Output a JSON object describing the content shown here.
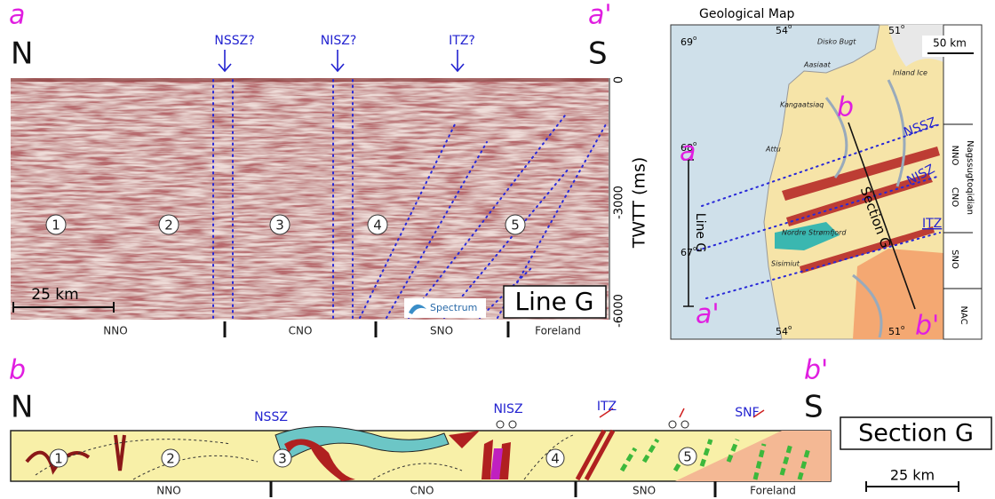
{
  "seismic": {
    "label_start": "a",
    "label_end": "a'",
    "north": "N",
    "south": "S",
    "zones": [
      "NSSZ?",
      "NISZ?",
      "ITZ?"
    ],
    "domain_numbers": [
      "1",
      "2",
      "3",
      "4",
      "5"
    ],
    "axis_title": "TWTT (ms)",
    "axis_ticks": [
      "0",
      "-3000",
      "-6000"
    ],
    "scale": "25 km",
    "line_name": "Line G",
    "logo": "Spectrum",
    "terranes": [
      "NNO",
      "CNO",
      "SNO",
      "Foreland"
    ]
  },
  "map": {
    "title": "Geological Map",
    "lat_labels": [
      {
        "num": "69",
        "deg": "o"
      },
      {
        "num": "68",
        "deg": "o"
      },
      {
        "num": "67",
        "deg": "o"
      }
    ],
    "lon_top": [
      {
        "num": "54",
        "deg": "o"
      },
      {
        "num": "51",
        "deg": "o"
      }
    ],
    "lon_bottom": [
      {
        "num": "54",
        "deg": "o"
      },
      {
        "num": "51",
        "deg": "o"
      }
    ],
    "places": [
      "Disko Bugt",
      "Aasiaat",
      "Inland Ice",
      "Kangaatsiaq",
      "Attu",
      "Nordre Strømfjord",
      "Sisimiut"
    ],
    "scale": "50 km",
    "zones": [
      "NSSZ",
      "NISZ",
      "ITZ"
    ],
    "line_label": "Line G",
    "section_label": "Section G",
    "line_ends": [
      "a",
      "a'"
    ],
    "section_ends": [
      "b",
      "b'"
    ],
    "province": "Nagssugtoqidian",
    "terranes": [
      "NNO",
      "CNO",
      "SNO"
    ],
    "craton": "NAC"
  },
  "section": {
    "label_start": "b",
    "label_end": "b'",
    "north": "N",
    "south": "S",
    "zones": [
      "NSSZ",
      "NISZ",
      "ITZ",
      "SNF"
    ],
    "domain_numbers": [
      "1",
      "2",
      "3",
      "4",
      "5"
    ],
    "terranes": [
      "NNO",
      "CNO",
      "SNO",
      "Foreland"
    ],
    "name": "Section G",
    "scale": "25 km"
  }
}
